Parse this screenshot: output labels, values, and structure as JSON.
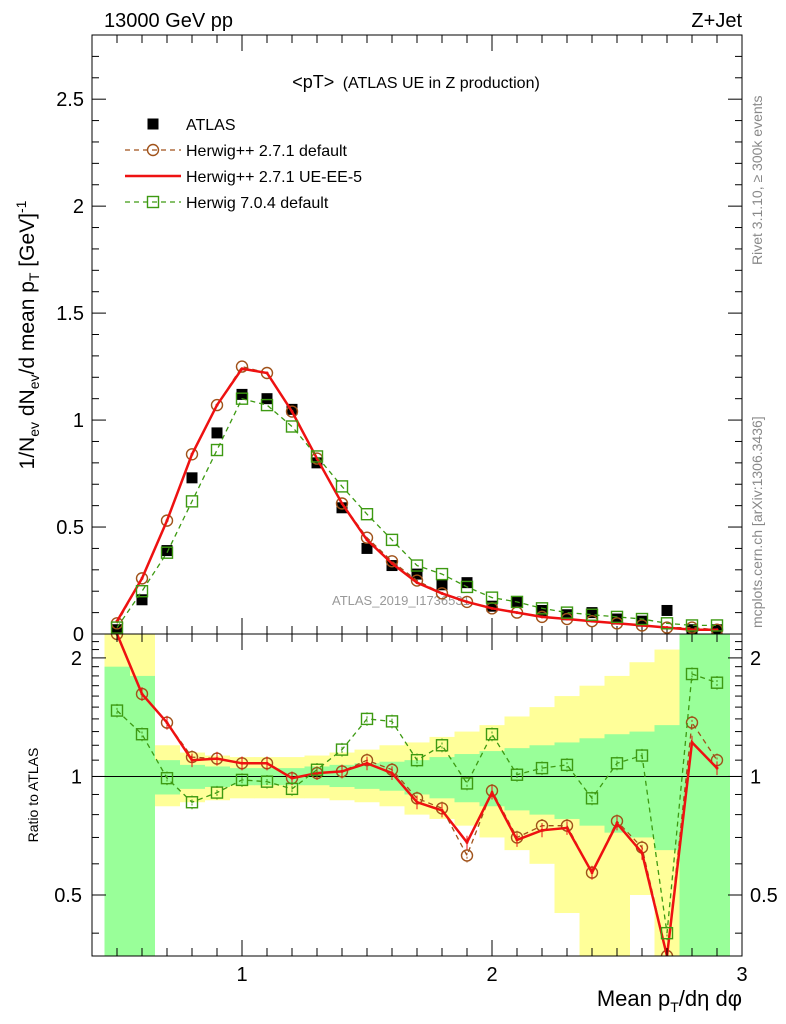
{
  "header": {
    "left": "13000 GeV pp",
    "right": "Z+Jet"
  },
  "side_labels": {
    "rivet": "Rivet 3.1.10, ≥ 300k events",
    "mcplots": "mcplots.cern.ch [arXiv:1306.3436]"
  },
  "watermark": "ATLAS_2019_I1736531",
  "colors": {
    "atlas": "#000000",
    "herwig_default": "#a0521a",
    "herwig_ueee5": "#ee1111",
    "herwig7": "#3d9a12",
    "band_inner": "#99ff99",
    "band_outer": "#ffff99"
  },
  "chart_data": [
    {
      "type": "scatter",
      "title": "<pT> (ATLAS UE in Z production)",
      "title_main": "<pT>",
      "title_sub": "(ATLAS UE in Z production)",
      "ylabel": "1/N_ev dN_ev/d mean p_T [GeV]^-1",
      "xlim": [
        0.4,
        3.0
      ],
      "ylim": [
        0,
        2.8
      ],
      "xticks": [
        1,
        2,
        3
      ],
      "yticks": [
        0,
        0.5,
        1,
        1.5,
        2,
        2.5
      ],
      "ytick_labels": [
        "0",
        "0.5",
        "1",
        "1.5",
        "2",
        "2.5"
      ],
      "legend_position": "top-left",
      "x": [
        0.5,
        0.6,
        0.7,
        0.8,
        0.9,
        1.0,
        1.1,
        1.2,
        1.3,
        1.4,
        1.5,
        1.6,
        1.7,
        1.8,
        1.9,
        2.0,
        2.1,
        2.2,
        2.3,
        2.4,
        2.5,
        2.6,
        2.7,
        2.8,
        2.9
      ],
      "series": [
        {
          "name": "ATLAS",
          "style": "square-filled",
          "values": [
            0.02,
            0.16,
            0.39,
            0.73,
            0.94,
            1.12,
            1.1,
            1.05,
            0.8,
            0.59,
            0.4,
            0.32,
            0.28,
            0.23,
            0.24,
            0.13,
            0.15,
            0.11,
            0.09,
            0.1,
            0.07,
            0.06,
            0.11,
            0.02,
            0.02
          ]
        },
        {
          "name": "Herwig++ 2.7.1 default",
          "style": "circle-dashed",
          "values": [
            0.05,
            0.26,
            0.53,
            0.84,
            1.07,
            1.25,
            1.22,
            1.04,
            0.82,
            0.61,
            0.45,
            0.34,
            0.25,
            0.19,
            0.15,
            0.12,
            0.1,
            0.08,
            0.07,
            0.06,
            0.05,
            0.04,
            0.03,
            0.03,
            0.02
          ]
        },
        {
          "name": "Herwig++ 2.7.1 UE-EE-5",
          "style": "solid-line",
          "values": [
            0.06,
            0.26,
            0.53,
            0.84,
            1.07,
            1.24,
            1.22,
            1.04,
            0.82,
            0.61,
            0.44,
            0.33,
            0.24,
            0.19,
            0.15,
            0.12,
            0.1,
            0.08,
            0.07,
            0.06,
            0.05,
            0.04,
            0.03,
            0.02,
            0.02
          ]
        },
        {
          "name": "Herwig 7.0.4 default",
          "style": "square-open-dashed",
          "values": [
            0.03,
            0.2,
            0.38,
            0.62,
            0.86,
            1.1,
            1.07,
            0.97,
            0.83,
            0.69,
            0.56,
            0.44,
            0.32,
            0.28,
            0.22,
            0.17,
            0.15,
            0.12,
            0.1,
            0.09,
            0.08,
            0.07,
            0.05,
            0.04,
            0.04
          ]
        }
      ]
    },
    {
      "type": "line",
      "ylabel": "Ratio to ATLAS",
      "xlabel": "Mean p_T/dη dφ",
      "xlim": [
        0.4,
        3.0
      ],
      "ylim": [
        0.35,
        2.3
      ],
      "log_y": true,
      "xticks": [
        1,
        2,
        3
      ],
      "xtick_labels": [
        "1",
        "2",
        "3"
      ],
      "yticks": [
        0.5,
        1,
        2
      ],
      "ytick_labels": [
        "0.5",
        "1",
        "2"
      ],
      "reference_line": 1,
      "bin_edges": [
        0.45,
        0.55,
        0.65,
        0.75,
        0.85,
        0.95,
        1.05,
        1.15,
        1.25,
        1.35,
        1.45,
        1.55,
        1.65,
        1.75,
        1.85,
        1.95,
        2.05,
        2.15,
        2.25,
        2.35,
        2.45,
        2.55,
        2.65,
        2.75,
        2.85,
        2.95
      ],
      "band_inner": {
        "lo": [
          0.3,
          0.3,
          0.9,
          0.93,
          0.94,
          0.95,
          0.95,
          0.95,
          0.95,
          0.94,
          0.93,
          0.92,
          0.9,
          0.88,
          0.86,
          0.84,
          0.82,
          0.8,
          0.78,
          0.75,
          0.72,
          0.7,
          0.65,
          0.3,
          0.3
        ],
        "hi": [
          1.9,
          1.8,
          1.1,
          1.07,
          1.06,
          1.05,
          1.05,
          1.05,
          1.06,
          1.07,
          1.08,
          1.09,
          1.1,
          1.12,
          1.14,
          1.16,
          1.18,
          1.2,
          1.22,
          1.25,
          1.28,
          1.3,
          1.35,
          2.5,
          2.5
        ]
      },
      "band_outer": {
        "lo": [
          0.3,
          0.73,
          0.84,
          0.86,
          0.87,
          0.88,
          0.88,
          0.88,
          0.88,
          0.87,
          0.86,
          0.84,
          0.8,
          0.78,
          0.75,
          0.7,
          0.65,
          0.6,
          0.45,
          0.35,
          0.3,
          0.5,
          0.3,
          0.3,
          0.3
        ],
        "hi": [
          2.5,
          2.5,
          1.2,
          1.15,
          1.13,
          1.12,
          1.12,
          1.12,
          1.13,
          1.15,
          1.17,
          1.2,
          1.22,
          1.26,
          1.3,
          1.35,
          1.42,
          1.5,
          1.6,
          1.7,
          1.8,
          1.95,
          2.1,
          2.5,
          2.5
        ]
      },
      "x": [
        0.5,
        0.6,
        0.7,
        0.8,
        0.9,
        1.0,
        1.1,
        1.2,
        1.3,
        1.4,
        1.5,
        1.6,
        1.7,
        1.8,
        1.9,
        2.0,
        2.1,
        2.2,
        2.3,
        2.4,
        2.5,
        2.6,
        2.7,
        2.8,
        2.9
      ],
      "series": [
        {
          "name": "Herwig++ 2.7.1 default",
          "style": "circle-dashed",
          "values": [
            2.4,
            1.62,
            1.37,
            1.12,
            1.11,
            1.08,
            1.08,
            0.99,
            1.02,
            1.03,
            1.1,
            1.04,
            0.88,
            0.83,
            0.63,
            0.92,
            0.7,
            0.75,
            0.75,
            0.57,
            0.77,
            0.66,
            0.3,
            1.37,
            1.1
          ]
        },
        {
          "name": "Herwig++ 2.7.1 UE-EE-5",
          "style": "solid-line",
          "values": [
            2.5,
            1.62,
            1.37,
            1.1,
            1.11,
            1.08,
            1.08,
            0.99,
            1.02,
            1.03,
            1.08,
            1.02,
            0.86,
            0.82,
            0.68,
            0.91,
            0.69,
            0.73,
            0.74,
            0.57,
            0.76,
            0.64,
            0.3,
            1.22,
            1.05
          ]
        },
        {
          "name": "Herwig 7.0.4 default",
          "style": "square-open-dashed",
          "values": [
            1.47,
            1.28,
            0.99,
            0.86,
            0.91,
            0.98,
            0.97,
            0.93,
            1.04,
            1.17,
            1.4,
            1.38,
            1.1,
            1.2,
            0.96,
            1.28,
            1.01,
            1.05,
            1.07,
            0.88,
            1.08,
            1.13,
            0.4,
            1.82,
            1.73
          ]
        }
      ]
    }
  ]
}
